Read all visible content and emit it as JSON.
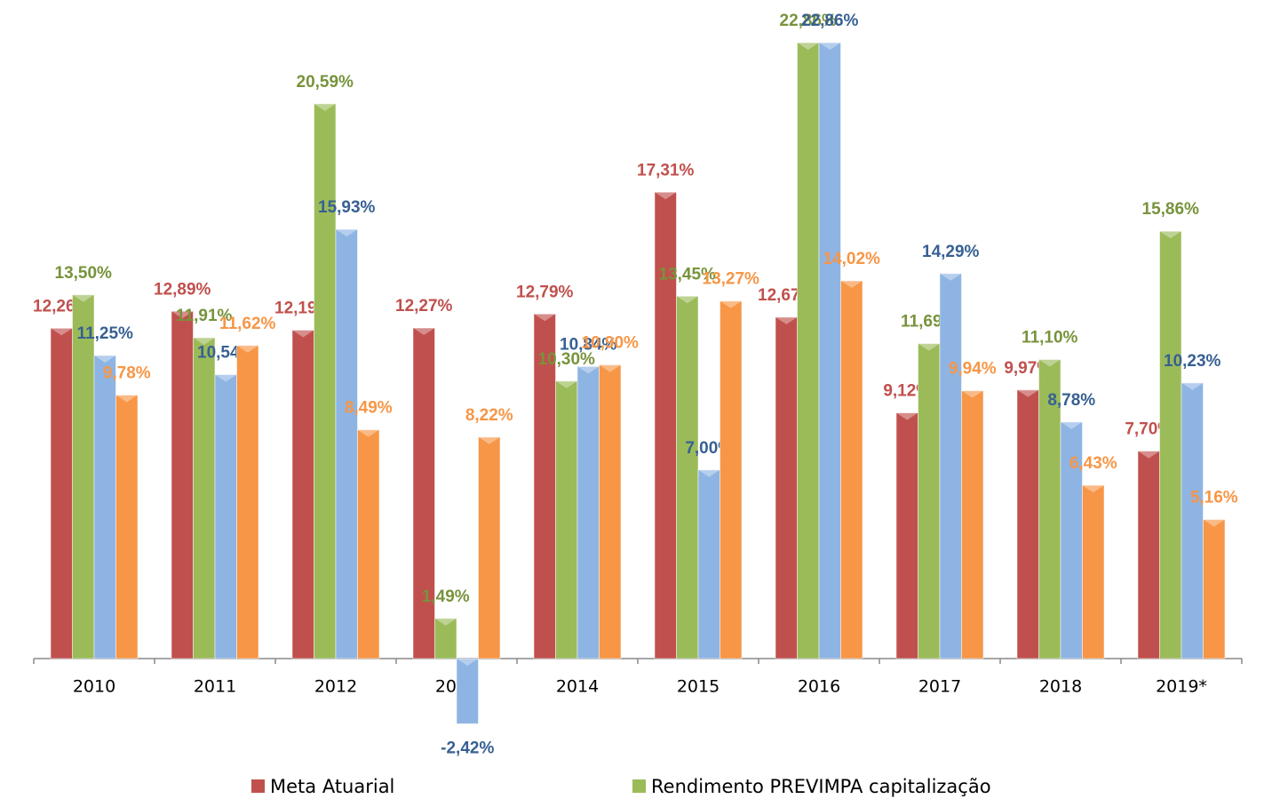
{
  "chart_data": {
    "type": "bar",
    "categories": [
      "2010",
      "2011",
      "2012",
      "2013",
      "2014",
      "2015",
      "2016",
      "2017",
      "2018",
      "2019*"
    ],
    "series": [
      {
        "name": "Meta Atuarial",
        "color": "#c0504d",
        "label_color": "#c0504d",
        "values": [
          12.26,
          12.89,
          12.19,
          12.27,
          12.79,
          17.31,
          12.67,
          9.12,
          9.97,
          7.7
        ],
        "value_labels": [
          "12,26%",
          "12,89%",
          "12,19%",
          "12,27%",
          "12,79%",
          "17,31%",
          "12,67%",
          "9,12%",
          "9,97%",
          "7,70%"
        ]
      },
      {
        "name": "Rendimento PREVIMPA capitalização",
        "color": "#9bbb59",
        "label_color": "#77933c",
        "values": [
          13.5,
          11.91,
          20.59,
          1.49,
          10.3,
          13.45,
          22.86,
          11.69,
          11.1,
          15.86
        ],
        "value_labels": [
          "13,50%",
          "11,91%",
          "20,59%",
          "1,49%",
          "10,30%",
          "13,45%",
          "22,86%",
          "11,69%",
          "11,10%",
          "15,86%"
        ]
      },
      {
        "color": "#8eb4e3",
        "label_color": "#376092",
        "values": [
          11.25,
          10.54,
          15.93,
          -2.42,
          10.84,
          7.0,
          22.86,
          14.29,
          8.78,
          10.23
        ],
        "value_labels": [
          "11,25%",
          "10,54%",
          "15,93%",
          "-2,42%",
          "10,84%",
          "7,00%",
          "22,86%",
          "14,29%",
          "8,78%",
          "10,23%"
        ]
      },
      {
        "color": "#f79646",
        "label_color": "#f79646",
        "values": [
          9.78,
          11.62,
          8.49,
          8.22,
          10.9,
          13.27,
          14.02,
          9.94,
          6.43,
          5.16
        ],
        "value_labels": [
          "9,78%",
          "11,62%",
          "8,49%",
          "8,22%",
          "10,90%",
          "13,27%",
          "14,02%",
          "9,94%",
          "6,43%",
          "5,16%"
        ]
      }
    ]
  }
}
